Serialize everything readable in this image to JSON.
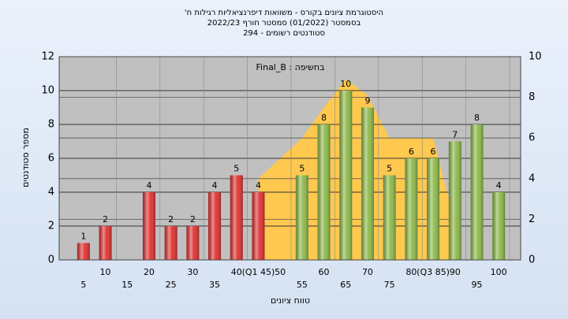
{
  "chart_data": {
    "type": "bar",
    "title_lines": [
      "היסטוגרמת ציונים בקורס - משוואות דיפרנציאליות רגילות ח'",
      "בסמסטר (01/2022) סמסטר חורף 2022/23",
      "סטודנטים רשומים - 294"
    ],
    "annotation": "Final_B : בחשיפה",
    "ylabel": "מספר סטודנטים",
    "xlabel": "טווח ציונים",
    "categories": [
      "5",
      "10",
      "15",
      "20",
      "25",
      "30",
      "35",
      "40",
      "(Q1 45)",
      "50",
      "55",
      "60",
      "65",
      "70",
      "75",
      "80",
      "(Q3 85)",
      "90",
      "95",
      "100"
    ],
    "values": [
      1,
      2,
      0,
      4,
      2,
      2,
      4,
      5,
      4,
      0,
      5,
      8,
      10,
      9,
      5,
      6,
      6,
      7,
      8,
      4
    ],
    "colors": [
      "#e03030",
      "#e03030",
      "#e03030",
      "#e03030",
      "#e03030",
      "#e03030",
      "#e03030",
      "#e03030",
      "#e03030",
      "#8cb848",
      "#8cb848",
      "#8cb848",
      "#8cb848",
      "#8cb848",
      "#8cb848",
      "#8cb848",
      "#8cb848",
      "#8cb848",
      "#8cb848",
      "#8cb848"
    ],
    "area": {
      "axis": "y2",
      "color": "#ffc84f",
      "values": [
        null,
        null,
        null,
        null,
        null,
        null,
        null,
        null,
        4,
        5,
        6,
        7.5,
        8.9,
        8.1,
        6,
        6,
        6,
        1.8,
        null,
        null
      ]
    },
    "ylim": [
      0,
      12
    ],
    "yticks": [
      0,
      2,
      4,
      6,
      8,
      10,
      12
    ],
    "y2lim": [
      0,
      10
    ],
    "y2ticks": [
      0,
      2,
      4,
      6,
      8,
      10
    ],
    "grid": true
  }
}
